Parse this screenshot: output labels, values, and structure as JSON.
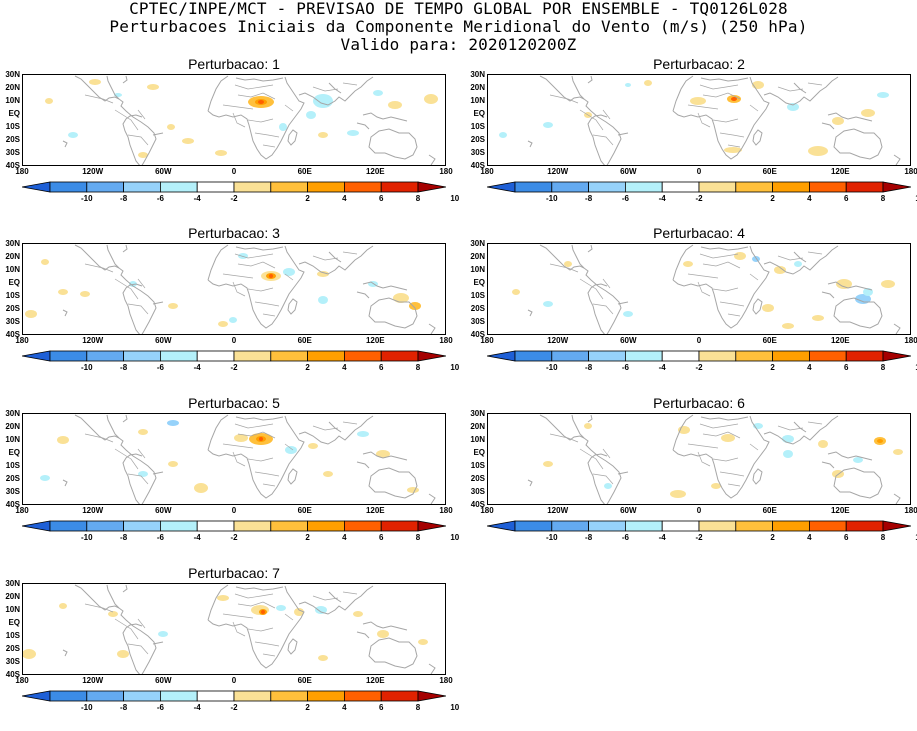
{
  "header": {
    "line1": "CPTEC/INPE/MCT - PREVISAO DE TEMPO GLOBAL POR ENSEMBLE - TQ0126L028",
    "line2": "Perturbacoes Iniciais da Componente Meridional do Vento (m/s) (250 hPa)",
    "line3": "Valido para: 2020120200Z"
  },
  "panels": [
    {
      "title": "Perturbacao: 1"
    },
    {
      "title": "Perturbacao: 2"
    },
    {
      "title": "Perturbacao: 3"
    },
    {
      "title": "Perturbacao: 4"
    },
    {
      "title": "Perturbacao: 5"
    },
    {
      "title": "Perturbacao: 6"
    },
    {
      "title": "Perturbacao: 7"
    }
  ],
  "axes": {
    "y_ticks": [
      "30N",
      "20N",
      "10N",
      "EQ",
      "10S",
      "20S",
      "30S",
      "40S"
    ],
    "x_ticks": [
      "180",
      "120W",
      "60W",
      "0",
      "60E",
      "120E",
      "180"
    ]
  },
  "colorbar": {
    "labels": [
      "-10",
      "-8",
      "-6",
      "-4",
      "-2",
      "2",
      "4",
      "6",
      "8",
      "10"
    ],
    "colors": [
      "#1e5fd6",
      "#3c8ce6",
      "#64aaf0",
      "#96d2fa",
      "#b4f0fa",
      "#ffffff",
      "#fae196",
      "#ffc03c",
      "#ff9f00",
      "#ff6000",
      "#e12200",
      "#a50000"
    ]
  },
  "colors": {
    "land_outline": "#a6a6a6",
    "frame": "#000000"
  }
}
